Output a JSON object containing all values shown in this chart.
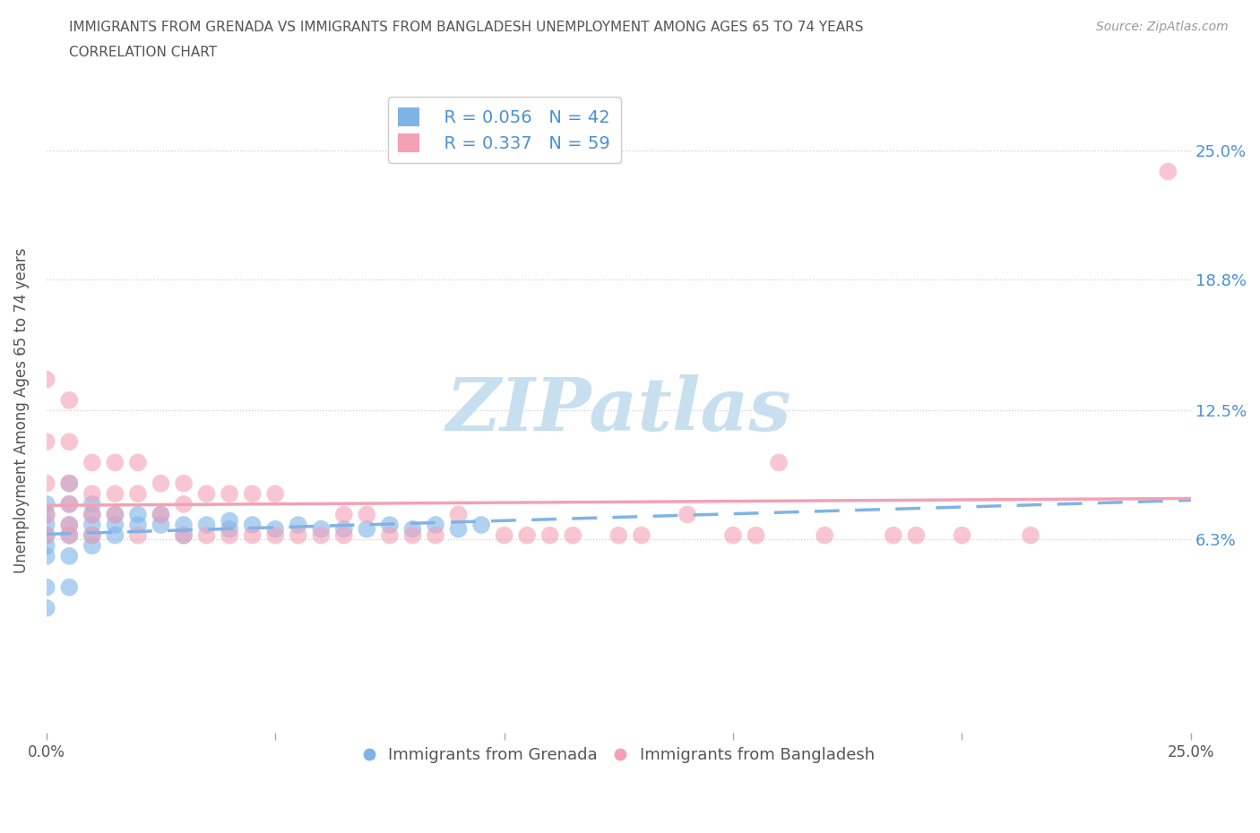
{
  "title_line1": "IMMIGRANTS FROM GRENADA VS IMMIGRANTS FROM BANGLADESH UNEMPLOYMENT AMONG AGES 65 TO 74 YEARS",
  "title_line2": "CORRELATION CHART",
  "source": "Source: ZipAtlas.com",
  "xlabel": "",
  "ylabel": "Unemployment Among Ages 65 to 74 years",
  "xlim": [
    0.0,
    0.25
  ],
  "ylim": [
    -0.03,
    0.28
  ],
  "ytick_positions": [
    0.063,
    0.125,
    0.188,
    0.25
  ],
  "ytick_labels": [
    "6.3%",
    "12.5%",
    "18.8%",
    "25.0%"
  ],
  "grenada_color": "#7eb3e8",
  "bangladesh_color": "#f4a0b5",
  "grenada_R": 0.056,
  "grenada_N": 42,
  "bangladesh_R": 0.337,
  "bangladesh_N": 59,
  "watermark_text": "ZIPatlas",
  "watermark_color": "#c8dff0",
  "legend_label1": "Immigrants from Grenada",
  "legend_label2": "Immigrants from Bangladesh",
  "background_color": "#ffffff",
  "grenada_x": [
    0.0,
    0.0,
    0.0,
    0.0,
    0.0,
    0.0,
    0.0,
    0.0,
    0.005,
    0.005,
    0.005,
    0.005,
    0.005,
    0.005,
    0.01,
    0.01,
    0.01,
    0.01,
    0.01,
    0.015,
    0.015,
    0.015,
    0.02,
    0.02,
    0.025,
    0.025,
    0.03,
    0.03,
    0.035,
    0.04,
    0.04,
    0.045,
    0.05,
    0.055,
    0.06,
    0.065,
    0.07,
    0.075,
    0.08,
    0.085,
    0.09,
    0.095
  ],
  "grenada_y": [
    0.08,
    0.075,
    0.07,
    0.065,
    0.06,
    0.055,
    0.04,
    0.03,
    0.09,
    0.08,
    0.07,
    0.065,
    0.055,
    0.04,
    0.08,
    0.075,
    0.07,
    0.065,
    0.06,
    0.075,
    0.07,
    0.065,
    0.075,
    0.07,
    0.075,
    0.07,
    0.07,
    0.065,
    0.07,
    0.072,
    0.068,
    0.07,
    0.068,
    0.07,
    0.068,
    0.068,
    0.068,
    0.07,
    0.068,
    0.07,
    0.068,
    0.07
  ],
  "bangladesh_x": [
    0.0,
    0.0,
    0.0,
    0.0,
    0.0,
    0.005,
    0.005,
    0.005,
    0.005,
    0.005,
    0.005,
    0.01,
    0.01,
    0.01,
    0.01,
    0.015,
    0.015,
    0.015,
    0.02,
    0.02,
    0.02,
    0.025,
    0.025,
    0.03,
    0.03,
    0.03,
    0.035,
    0.035,
    0.04,
    0.04,
    0.045,
    0.045,
    0.05,
    0.05,
    0.055,
    0.06,
    0.065,
    0.065,
    0.07,
    0.075,
    0.08,
    0.085,
    0.09,
    0.1,
    0.105,
    0.11,
    0.115,
    0.125,
    0.13,
    0.14,
    0.15,
    0.155,
    0.16,
    0.17,
    0.185,
    0.19,
    0.2,
    0.215,
    0.245
  ],
  "bangladesh_y": [
    0.14,
    0.11,
    0.09,
    0.075,
    0.065,
    0.13,
    0.11,
    0.09,
    0.08,
    0.07,
    0.065,
    0.1,
    0.085,
    0.075,
    0.065,
    0.1,
    0.085,
    0.075,
    0.1,
    0.085,
    0.065,
    0.09,
    0.075,
    0.09,
    0.08,
    0.065,
    0.085,
    0.065,
    0.085,
    0.065,
    0.085,
    0.065,
    0.085,
    0.065,
    0.065,
    0.065,
    0.075,
    0.065,
    0.075,
    0.065,
    0.065,
    0.065,
    0.075,
    0.065,
    0.065,
    0.065,
    0.065,
    0.065,
    0.065,
    0.075,
    0.065,
    0.065,
    0.1,
    0.065,
    0.065,
    0.065,
    0.065,
    0.065,
    0.24
  ]
}
